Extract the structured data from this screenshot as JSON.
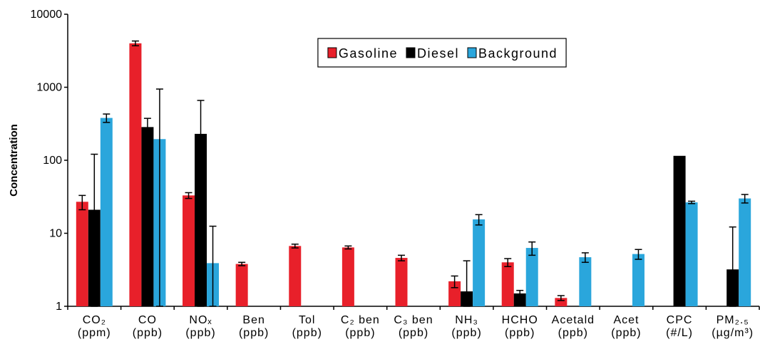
{
  "chart_data": {
    "type": "bar",
    "y_label": "Concentration",
    "log_y": true,
    "ylim": [
      1,
      10000
    ],
    "yticks": [
      1,
      10,
      100,
      1000,
      10000
    ],
    "legend_position": "top",
    "categories": [
      "CO₂",
      "CO",
      "NOₓ",
      "Ben",
      "Tol",
      "C₂ ben",
      "C₃ ben",
      "NH₃",
      "HCHO",
      "Acetald",
      "Acet",
      "CPC",
      "PM₂.₅"
    ],
    "units": [
      "(ppm)",
      "(ppb)",
      "(ppb)",
      "(ppb)",
      "(ppb)",
      "(ppb)",
      "(ppb)",
      "(ppb)",
      "(ppb)",
      "(ppb)",
      "(ppb)",
      "(#/L)",
      "(µg/m³)"
    ],
    "series": [
      {
        "name": "Gasoline",
        "color": "#e8202a",
        "values": [
          27,
          4000,
          33,
          3.8,
          6.7,
          6.4,
          4.6,
          2.2,
          4.0,
          1.3,
          null,
          null,
          null
        ],
        "errors": [
          6,
          300,
          3,
          0.2,
          0.4,
          0.3,
          0.4,
          0.4,
          0.5,
          0.1,
          null,
          null,
          null
        ]
      },
      {
        "name": "Diesel",
        "color": "#000000",
        "values": [
          21,
          285,
          230,
          null,
          null,
          null,
          null,
          1.6,
          1.5,
          null,
          null,
          115,
          3.2
        ],
        "errors": [
          100,
          90,
          430,
          null,
          null,
          null,
          null,
          2.6,
          0.15,
          null,
          null,
          null,
          9
        ]
      },
      {
        "name": "Background",
        "color": "#2aa6dc",
        "values": [
          380,
          195,
          3.9,
          null,
          null,
          null,
          null,
          15.5,
          6.3,
          4.7,
          5.2,
          26.5,
          30
        ],
        "errors": [
          50,
          750,
          8.6,
          null,
          null,
          null,
          null,
          2.5,
          1.3,
          0.7,
          0.8,
          1,
          4
        ]
      }
    ]
  }
}
